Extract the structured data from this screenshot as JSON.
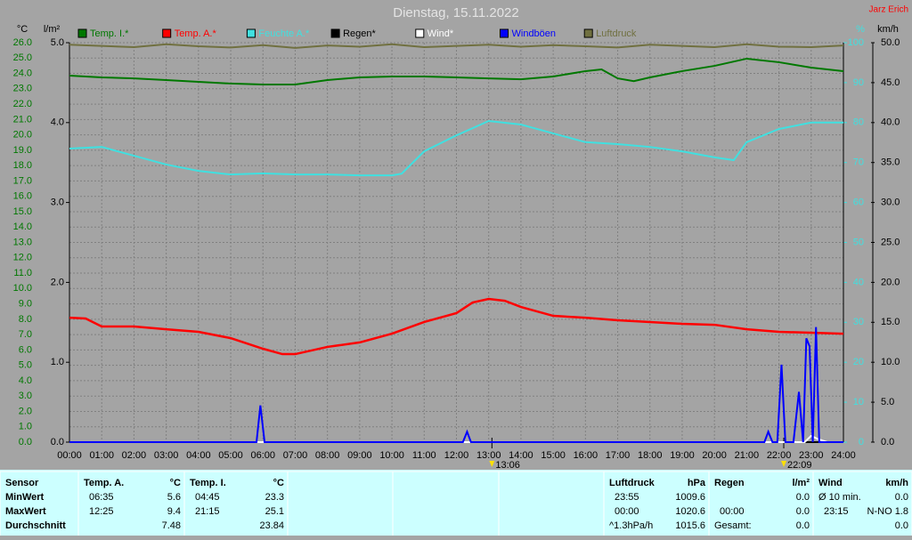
{
  "chart_data": {
    "type": "line",
    "title": "Dienstag, 15.11.2022",
    "author": "Jarz Erich",
    "y_label": "°C",
    "y2_label": "l/m²",
    "y3_label": "%",
    "y4_label": "km/h",
    "grid": true,
    "xlim": [
      0,
      24
    ],
    "xticks": [
      {
        "value": 0,
        "label": "00:00"
      },
      {
        "value": 1,
        "label": "01:00"
      },
      {
        "value": 2,
        "label": "02:00"
      },
      {
        "value": 3,
        "label": "03:00"
      },
      {
        "value": 4,
        "label": "04:00"
      },
      {
        "value": 5,
        "label": "05:00"
      },
      {
        "value": 6,
        "label": "06:00"
      },
      {
        "value": 7,
        "label": "07:00"
      },
      {
        "value": 8,
        "label": "08:00"
      },
      {
        "value": 9,
        "label": "09:00"
      },
      {
        "value": 10,
        "label": "10:00"
      },
      {
        "value": 11,
        "label": "11:00"
      },
      {
        "value": 12,
        "label": "12:00"
      },
      {
        "value": 13,
        "label": "13:00"
      },
      {
        "value": 14,
        "label": "14:00"
      },
      {
        "value": 15,
        "label": "15:00"
      },
      {
        "value": 16,
        "label": "16:00"
      },
      {
        "value": 17,
        "label": "17:00"
      },
      {
        "value": 18,
        "label": "18:00"
      },
      {
        "value": 19,
        "label": "19:00"
      },
      {
        "value": 20,
        "label": "20:00"
      },
      {
        "value": 21,
        "label": "21:00"
      },
      {
        "value": 22,
        "label": "22:00"
      },
      {
        "value": 23,
        "label": "23:00"
      },
      {
        "value": 24,
        "label": "24:00"
      }
    ],
    "ylim": [
      0,
      26
    ],
    "yticks": [
      {
        "value": 0,
        "label": "0.0"
      },
      {
        "value": 1,
        "label": "1.0"
      },
      {
        "value": 2,
        "label": "2.0"
      },
      {
        "value": 3,
        "label": "3.0"
      },
      {
        "value": 4,
        "label": "4.0"
      },
      {
        "value": 5,
        "label": "5.0"
      },
      {
        "value": 6,
        "label": "6.0"
      },
      {
        "value": 7,
        "label": "7.0"
      },
      {
        "value": 8,
        "label": "8.0"
      },
      {
        "value": 9,
        "label": "9.0"
      },
      {
        "value": 10,
        "label": "10.0"
      },
      {
        "value": 11,
        "label": "11.0"
      },
      {
        "value": 12,
        "label": "12.0"
      },
      {
        "value": 13,
        "label": "13.0"
      },
      {
        "value": 14,
        "label": "14.0"
      },
      {
        "value": 15,
        "label": "15.0"
      },
      {
        "value": 16,
        "label": "16.0"
      },
      {
        "value": 17,
        "label": "17.0"
      },
      {
        "value": 18,
        "label": "18.0"
      },
      {
        "value": 19,
        "label": "19.0"
      },
      {
        "value": 20,
        "label": "20.0"
      },
      {
        "value": 21,
        "label": "21.0"
      },
      {
        "value": 22,
        "label": "22.0"
      },
      {
        "value": 23,
        "label": "23.0"
      },
      {
        "value": 24,
        "label": "24.0"
      },
      {
        "value": 25,
        "label": "25.0"
      },
      {
        "value": 26,
        "label": "26.0"
      }
    ],
    "y2lim": [
      0,
      5
    ],
    "y2ticks": [
      {
        "value": 0,
        "label": "0.0"
      },
      {
        "value": 1,
        "label": "1.0"
      },
      {
        "value": 2,
        "label": "2.0"
      },
      {
        "value": 3,
        "label": "3.0"
      },
      {
        "value": 4,
        "label": "4.0"
      },
      {
        "value": 5,
        "label": "5.0"
      }
    ],
    "y3lim": [
      0,
      100
    ],
    "y3ticks": [
      0,
      10,
      20,
      30,
      40,
      50,
      60,
      70,
      80,
      90,
      100
    ],
    "y4lim": [
      0,
      50
    ],
    "y4ticks": [
      {
        "value": 0,
        "label": "0.0"
      },
      {
        "value": 5,
        "label": "5.0"
      },
      {
        "value": 10,
        "label": "10.0"
      },
      {
        "value": 15,
        "label": "15.0"
      },
      {
        "value": 20,
        "label": "20.0"
      },
      {
        "value": 25,
        "label": "25.0"
      },
      {
        "value": 30,
        "label": "30.0"
      },
      {
        "value": 35,
        "label": "35.0"
      },
      {
        "value": 40,
        "label": "40.0"
      },
      {
        "value": 45,
        "label": "45.0"
      },
      {
        "value": 50,
        "label": "50.0"
      }
    ],
    "annotations": [
      {
        "x": 13.1,
        "label": "13:06"
      },
      {
        "x": 22.15,
        "label": "22:09"
      }
    ],
    "series": [
      {
        "name": "Temp. I.*",
        "color": "#007800",
        "axis": "y",
        "x": [
          0,
          1,
          2,
          3,
          4,
          5,
          6,
          7,
          8,
          9,
          10,
          11,
          12,
          13,
          14,
          15,
          16,
          16.5,
          17,
          17.5,
          18,
          19,
          20,
          21,
          22,
          23,
          24
        ],
        "values": [
          23.86,
          23.74,
          23.68,
          23.57,
          23.45,
          23.34,
          23.28,
          23.28,
          23.57,
          23.74,
          23.8,
          23.8,
          23.74,
          23.68,
          23.62,
          23.8,
          24.15,
          24.26,
          23.68,
          23.5,
          23.74,
          24.15,
          24.49,
          24.96,
          24.73,
          24.38,
          24.15
        ]
      },
      {
        "name": "Temp. A.*",
        "color": "#ff0000",
        "axis": "y",
        "x": [
          0,
          0.5,
          1,
          2,
          3,
          4,
          5,
          6,
          6.6,
          7,
          8,
          9,
          10,
          11,
          12,
          12.5,
          13,
          13.5,
          14,
          15,
          16,
          17,
          18,
          19,
          20,
          21,
          22,
          23,
          24
        ],
        "values": [
          8.1,
          8.05,
          7.53,
          7.53,
          7.35,
          7.18,
          6.77,
          6.08,
          5.73,
          5.73,
          6.2,
          6.49,
          7.06,
          7.82,
          8.4,
          9.09,
          9.32,
          9.2,
          8.8,
          8.22,
          8.1,
          7.93,
          7.82,
          7.7,
          7.64,
          7.35,
          7.18,
          7.12,
          7.06
        ]
      },
      {
        "name": "Feuchte A.*",
        "color": "#40e0e0",
        "axis": "y3",
        "x": [
          0,
          1,
          2,
          3,
          4,
          5,
          6,
          7,
          8,
          9,
          10,
          10.3,
          11,
          12,
          13,
          14,
          15,
          16,
          17,
          18,
          19,
          20,
          20.6,
          21,
          22,
          23,
          24
        ],
        "values": [
          73.5,
          73.9,
          71.7,
          69.5,
          67.9,
          67.0,
          67.3,
          67.0,
          67.0,
          66.8,
          66.8,
          67.2,
          72.8,
          76.8,
          80.4,
          79.5,
          77.3,
          75.1,
          74.6,
          73.9,
          72.8,
          71.3,
          70.6,
          75.1,
          78.4,
          80.0,
          80.0
        ]
      },
      {
        "name": "Regen*",
        "color": "#000000",
        "axis": "y2",
        "x": [
          0,
          24
        ],
        "values": [
          0,
          0
        ]
      },
      {
        "name": "Wind*",
        "color": "#ffffff",
        "axis": "y4",
        "x": [
          0,
          22.8,
          23.0,
          23.2,
          23.5,
          24
        ],
        "values": [
          0,
          0,
          0.8,
          0.4,
          0,
          0
        ]
      },
      {
        "name": "Windböen",
        "color": "#0000ff",
        "axis": "y4",
        "x": [
          0,
          5.8,
          5.92,
          6.05,
          12.2,
          12.33,
          12.45,
          21.55,
          21.67,
          21.8,
          21.95,
          22.08,
          22.2,
          22.45,
          22.62,
          22.75,
          22.85,
          22.95,
          23.05,
          23.15,
          23.25,
          23.4,
          24
        ],
        "values": [
          0,
          0,
          4.6,
          0,
          0,
          1.3,
          0,
          0,
          1.3,
          0,
          0,
          9.7,
          0,
          0,
          6.3,
          0,
          13.0,
          12.0,
          0,
          14.4,
          0,
          0,
          0
        ]
      },
      {
        "name": "Luftdruck",
        "color": "#707040",
        "axis": "y3",
        "x": [
          0,
          1,
          2,
          3,
          4,
          5,
          6,
          7,
          8,
          9,
          10,
          11,
          12,
          13,
          14,
          15,
          16,
          17,
          18,
          19,
          20,
          21,
          22,
          23,
          24
        ],
        "values": [
          99.5,
          99.2,
          98.9,
          99.6,
          99.1,
          98.8,
          99.4,
          98.7,
          99.3,
          99.0,
          99.6,
          98.9,
          99.2,
          99.5,
          99.0,
          99.4,
          99.1,
          98.8,
          99.5,
          99.2,
          98.9,
          99.6,
          99.0,
          98.9,
          99.3
        ]
      }
    ]
  },
  "stats_table": [
    {
      "title": "Sensor",
      "rows": [
        [
          "MinWert"
        ],
        [
          "MaxWert"
        ],
        [
          "Durchschnitt"
        ]
      ]
    },
    {
      "title": "Temp. A.",
      "unit": "°C",
      "rows": [
        [
          "06:35",
          "5.6"
        ],
        [
          "12:25",
          "9.4"
        ],
        [
          null,
          "7.48"
        ]
      ]
    },
    {
      "title": "Temp. I.",
      "unit": "°C",
      "rows": [
        [
          "04:45",
          "23.3"
        ],
        [
          "21:15",
          "25.1"
        ],
        [
          null,
          "23.84"
        ]
      ]
    },
    {
      "title": "Luftdruck",
      "unit": "hPa",
      "rows": [
        [
          "23:55",
          "1009.6"
        ],
        [
          "00:00",
          "1020.6"
        ],
        [
          "^1.3hPa/h",
          "1015.6"
        ]
      ]
    },
    {
      "title": "Regen",
      "unit": "l/m²",
      "rows": [
        [
          null,
          "0.0"
        ],
        [
          "00:00",
          "0.0"
        ],
        [
          "Gesamt:",
          "0.0"
        ]
      ]
    },
    {
      "title": "Wind",
      "unit": "km/h",
      "rows": [
        [
          "Ø 10 min.",
          "0.0"
        ],
        [
          "23:15",
          "N-NO 1.8"
        ],
        [
          null,
          "0.0"
        ]
      ]
    }
  ]
}
